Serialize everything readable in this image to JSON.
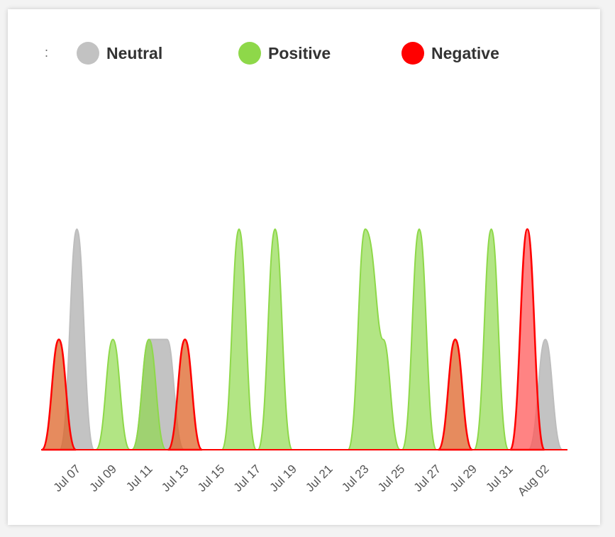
{
  "legend": {
    "colon": ":",
    "items": [
      {
        "label": "Neutral",
        "color": "#c2c2c2"
      },
      {
        "label": "Positive",
        "color": "#8ed849"
      },
      {
        "label": "Negative",
        "color": "#ff0000"
      }
    ]
  },
  "chart_data": {
    "type": "area",
    "title": "",
    "xlabel": "",
    "ylabel": "",
    "ylim": [
      0,
      2
    ],
    "x_labels": [
      "Jul 07",
      "Jul 09",
      "Jul 11",
      "Jul 13",
      "Jul 15",
      "Jul 17",
      "Jul 19",
      "Jul 21",
      "Jul 23",
      "Jul 25",
      "Jul 27",
      "Jul 29",
      "Jul 31",
      "Aug 02"
    ],
    "x": [
      "Jul 06",
      "Jul 07",
      "Jul 08",
      "Jul 09",
      "Jul 10",
      "Jul 11",
      "Jul 12",
      "Jul 13",
      "Jul 14",
      "Jul 15",
      "Jul 16",
      "Jul 17",
      "Jul 18",
      "Jul 19",
      "Jul 20",
      "Jul 21",
      "Jul 22",
      "Jul 23",
      "Jul 24",
      "Jul 25",
      "Jul 26",
      "Jul 27",
      "Jul 28",
      "Jul 29",
      "Jul 30",
      "Jul 31",
      "Aug 01",
      "Aug 02"
    ],
    "series": [
      {
        "name": "Neutral",
        "color": "#c2c2c2",
        "values": [
          0,
          2,
          0,
          0,
          0,
          1,
          1,
          0,
          0,
          0,
          0,
          0,
          0,
          0,
          0,
          0,
          0,
          0,
          0,
          0,
          0,
          0,
          0,
          0,
          0,
          0,
          0,
          1
        ]
      },
      {
        "name": "Positive",
        "color": "#8ed849",
        "values": [
          0,
          0,
          0,
          1,
          0,
          1,
          0,
          0,
          0,
          0,
          2,
          0,
          2,
          0,
          0,
          0,
          0,
          2,
          1,
          0,
          2,
          0,
          0,
          0,
          2,
          0,
          0,
          0
        ]
      },
      {
        "name": "Negative",
        "color": "#ff0000",
        "values": [
          1,
          0,
          0,
          0,
          0,
          0,
          0,
          1,
          0,
          0,
          0,
          0,
          0,
          0,
          0,
          0,
          0,
          0,
          0,
          0,
          0,
          0,
          1,
          0,
          0,
          0,
          2,
          0
        ]
      }
    ]
  }
}
